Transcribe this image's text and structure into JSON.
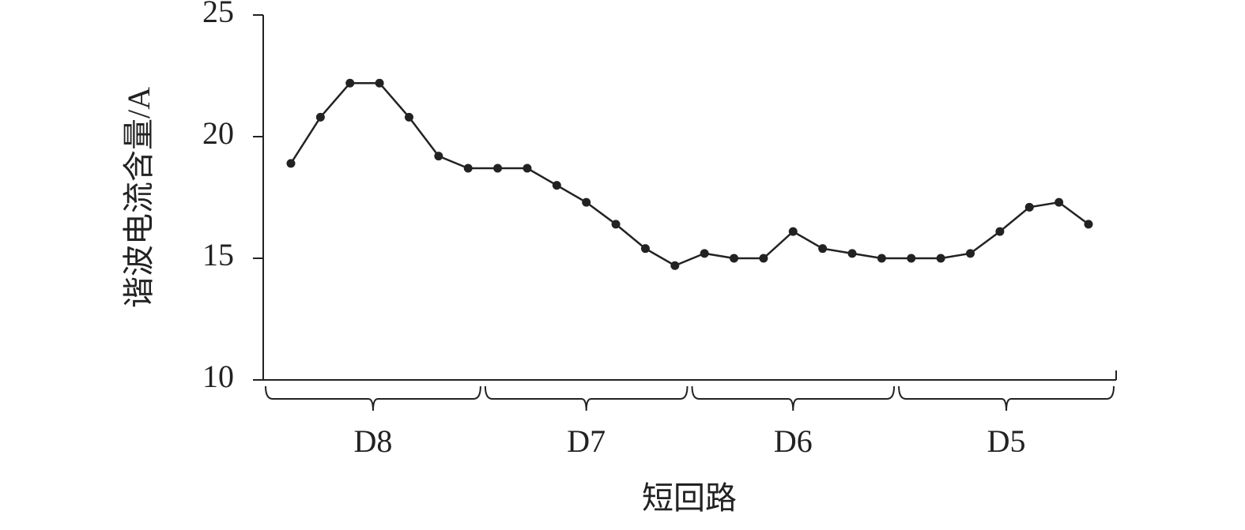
{
  "chart_data": {
    "type": "line",
    "y_label": "谐波电流含量/A",
    "x_label": "短回路",
    "group_labels": [
      "D8",
      "D7",
      "D6",
      "D5"
    ],
    "categories": [
      null,
      null,
      null,
      null,
      null,
      null,
      null,
      null,
      null,
      null,
      null,
      null,
      null,
      null,
      null,
      null,
      null,
      null,
      null,
      null,
      null,
      null,
      null,
      null,
      null,
      null,
      null,
      null
    ],
    "values": [
      18.9,
      20.8,
      22.2,
      22.2,
      20.8,
      19.2,
      18.7,
      18.7,
      18.7,
      18.0,
      17.3,
      16.4,
      15.4,
      14.7,
      15.2,
      15.0,
      15.0,
      16.1,
      15.4,
      15.2,
      15.0,
      15.0,
      15.0,
      15.2,
      16.1,
      17.1,
      17.3,
      16.4
    ],
    "color": "#222222",
    "ylim": [
      10,
      25
    ],
    "yticks": [
      10,
      15,
      20,
      25
    ],
    "grid": false
  }
}
